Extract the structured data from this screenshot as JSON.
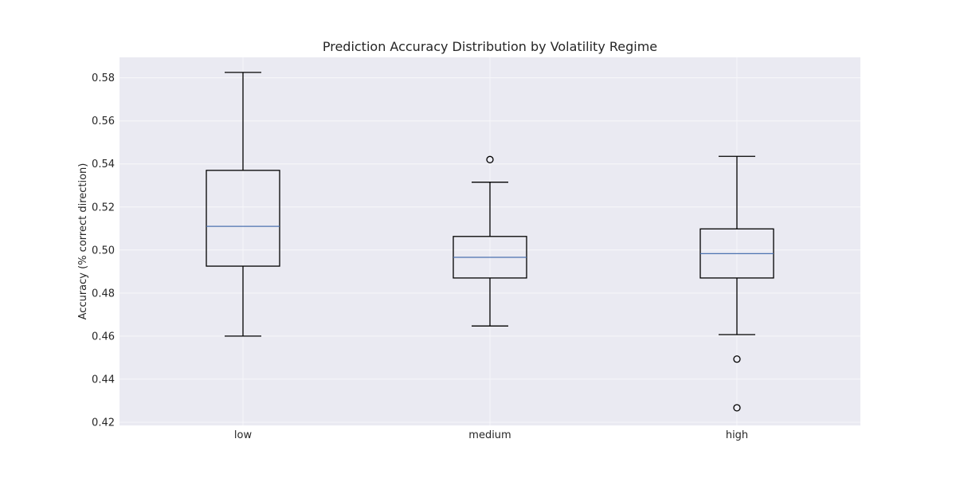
{
  "chart_data": {
    "type": "box",
    "title": "Prediction Accuracy Distribution by Volatility Regime",
    "xlabel": "",
    "ylabel": "Accuracy (% correct direction)",
    "ylim": [
      0.4185,
      0.5895
    ],
    "yticks": [
      "0.42",
      "0.44",
      "0.46",
      "0.48",
      "0.50",
      "0.52",
      "0.54",
      "0.56",
      "0.58"
    ],
    "grid": true,
    "categories": [
      "low",
      "medium",
      "high"
    ],
    "boxes": [
      {
        "category": "low",
        "whisker_low": 0.46,
        "q1": 0.4925,
        "median": 0.511,
        "q3": 0.537,
        "whisker_high": 0.5825,
        "outliers": []
      },
      {
        "category": "medium",
        "whisker_low": 0.4647,
        "q1": 0.487,
        "median": 0.4966,
        "q3": 0.5063,
        "whisker_high": 0.5315,
        "outliers": [
          0.542
        ]
      },
      {
        "category": "high",
        "whisker_low": 0.4607,
        "q1": 0.487,
        "median": 0.4983,
        "q3": 0.5098,
        "whisker_high": 0.5435,
        "outliers": [
          0.4493,
          0.4267
        ]
      }
    ],
    "colors": {
      "plot_background": "#eaeaf2",
      "grid": "#f7f7fa",
      "box": "#000000",
      "median": "#4c72b0"
    }
  }
}
